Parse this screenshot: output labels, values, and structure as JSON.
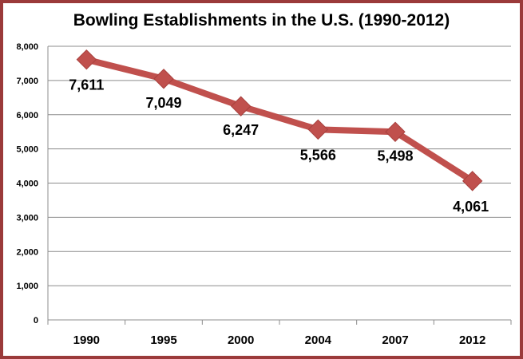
{
  "chart_data": {
    "type": "line",
    "title": "Bowling Establishments in the U.S. (1990-2012)",
    "xlabel": "",
    "ylabel": "",
    "categories": [
      "1990",
      "1995",
      "2000",
      "2004",
      "2007",
      "2012"
    ],
    "series": [
      {
        "name": "Bowling Establishments",
        "values": [
          7611,
          7049,
          6247,
          5566,
          5498,
          4061
        ],
        "color": "#c0504d"
      }
    ],
    "data_labels": [
      "7,611",
      "7,049",
      "6,247",
      "5,566",
      "5,498",
      "4,061"
    ],
    "ylim": [
      0,
      8000
    ],
    "y_ticks": [
      0,
      1000,
      2000,
      3000,
      4000,
      5000,
      6000,
      7000,
      8000
    ],
    "y_tick_labels": [
      "0",
      "1,000",
      "2,000",
      "3,000",
      "4,000",
      "5,000",
      "6,000",
      "7,000",
      "8,000"
    ],
    "grid": true,
    "legend": "none",
    "border_color": "#9b3a3a",
    "grid_color": "#8c8c8c"
  }
}
